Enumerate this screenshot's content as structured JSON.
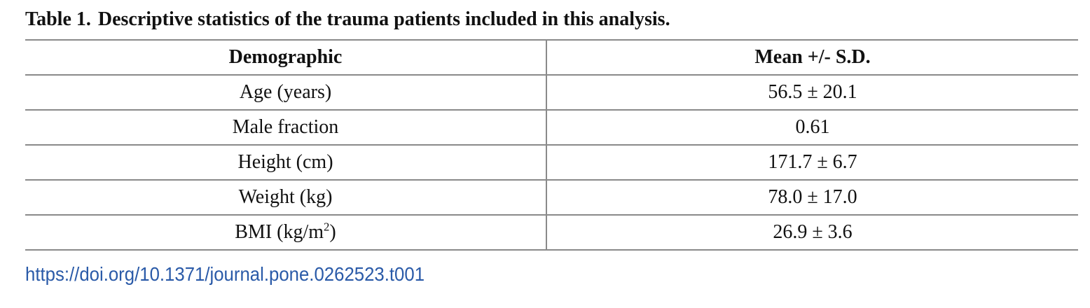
{
  "caption": {
    "label": "Table 1.",
    "text": "Descriptive statistics of the trauma patients included in this analysis."
  },
  "table": {
    "headers": [
      "Demographic",
      "Mean +/- S.D."
    ],
    "rows": [
      {
        "demographic": "Age (years)",
        "value": "56.5 ± 20.1"
      },
      {
        "demographic": "Male fraction",
        "value": "0.61"
      },
      {
        "demographic": "Height (cm)",
        "value": "171.7 ± 6.7"
      },
      {
        "demographic": "Weight (kg)",
        "value": "78.0 ± 17.0"
      },
      {
        "demographic_prefix": "BMI (kg/m",
        "demographic_sup": "2",
        "demographic_suffix": ")",
        "value": "26.9 ± 3.6"
      }
    ]
  },
  "doi": {
    "text": "https://doi.org/10.1371/journal.pone.0262523.t001"
  },
  "colors": {
    "rule": "#8a8a8a",
    "link": "#2a5aa8",
    "text": "#111111"
  }
}
